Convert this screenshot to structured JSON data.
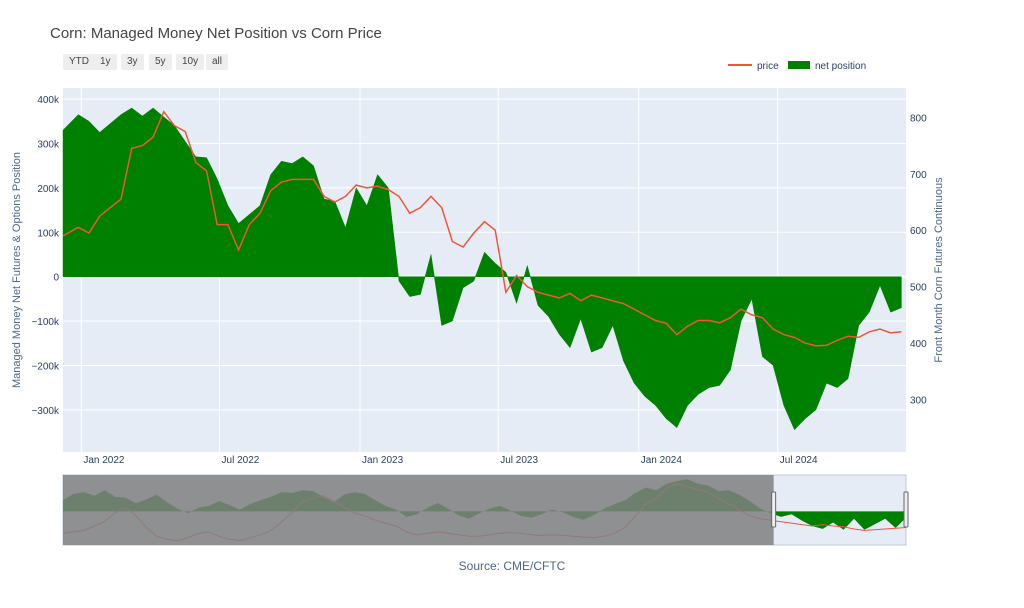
{
  "title": "Corn: Managed Money Net Position vs Corn Price",
  "source": "Source: CME/CFTC",
  "range_buttons": [
    "YTD",
    "1y",
    "3y",
    "5y",
    "10y",
    "all"
  ],
  "legend": {
    "price": "price",
    "net": "net position"
  },
  "colors": {
    "price": "#ef553b",
    "net": "#008000",
    "plot_bg": "#e5ecf6",
    "mask": "#808080"
  },
  "chart_data": {
    "type": "line",
    "title": "Corn: Managed Money Net Position vs Corn Price",
    "ylabel": "Managed Money Net Futures & Options Position",
    "y2label": "Front Month Corn Futures Continuous",
    "ylim": [
      -395000,
      425000
    ],
    "y2lim": [
      207,
      852
    ],
    "yticks": [
      -300000,
      -200000,
      -100000,
      0,
      100000,
      200000,
      300000,
      400000
    ],
    "ytick_labels": [
      "−300k",
      "−200k",
      "−100k",
      "0",
      "100k",
      "200k",
      "300k",
      "400k"
    ],
    "y2ticks": [
      300,
      400,
      500,
      600,
      700,
      800
    ],
    "y2tick_labels": [
      "300",
      "400",
      "500",
      "600",
      "700",
      "800"
    ],
    "xticks": [
      "2022-01-01",
      "2022-07-01",
      "2023-01-01",
      "2023-07-01",
      "2024-01-01",
      "2024-07-01"
    ],
    "xtick_labels": [
      "Jan 2022",
      "Jul 2022",
      "Jan 2023",
      "Jul 2023",
      "Jan 2024",
      "Jul 2024"
    ],
    "xlim": [
      "2021-12-08",
      "2024-12-16"
    ],
    "grid": true,
    "legend_position": "top-right",
    "series": [
      {
        "name": "net position",
        "axis": "left",
        "style": "area",
        "points": [
          [
            "2021-12-08",
            330000
          ],
          [
            "2021-12-28",
            365000
          ],
          [
            "2022-01-11",
            350000
          ],
          [
            "2022-01-25",
            325000
          ],
          [
            "2022-02-08",
            345000
          ],
          [
            "2022-02-22",
            365000
          ],
          [
            "2022-03-08",
            380000
          ],
          [
            "2022-03-22",
            362000
          ],
          [
            "2022-04-05",
            380000
          ],
          [
            "2022-04-19",
            360000
          ],
          [
            "2022-05-03",
            340000
          ],
          [
            "2022-05-17",
            305000
          ],
          [
            "2022-05-31",
            270000
          ],
          [
            "2022-06-14",
            268000
          ],
          [
            "2022-06-28",
            220000
          ],
          [
            "2022-07-12",
            160000
          ],
          [
            "2022-07-26",
            120000
          ],
          [
            "2022-08-09",
            140000
          ],
          [
            "2022-08-23",
            160000
          ],
          [
            "2022-09-06",
            230000
          ],
          [
            "2022-09-20",
            260000
          ],
          [
            "2022-10-04",
            255000
          ],
          [
            "2022-10-18",
            270000
          ],
          [
            "2022-11-01",
            250000
          ],
          [
            "2022-11-15",
            175000
          ],
          [
            "2022-11-29",
            170000
          ],
          [
            "2022-12-13",
            110000
          ],
          [
            "2022-12-27",
            200000
          ],
          [
            "2023-01-10",
            160000
          ],
          [
            "2023-01-24",
            230000
          ],
          [
            "2023-02-07",
            200000
          ],
          [
            "2023-02-21",
            -10000
          ],
          [
            "2023-03-07",
            -45000
          ],
          [
            "2023-03-21",
            -40000
          ],
          [
            "2023-04-04",
            50000
          ],
          [
            "2023-04-18",
            -110000
          ],
          [
            "2023-05-02",
            -100000
          ],
          [
            "2023-05-16",
            -25000
          ],
          [
            "2023-05-30",
            -10000
          ],
          [
            "2023-06-13",
            55000
          ],
          [
            "2023-06-27",
            30000
          ],
          [
            "2023-07-11",
            10000
          ],
          [
            "2023-07-25",
            -60000
          ],
          [
            "2023-08-08",
            25000
          ],
          [
            "2023-08-22",
            -65000
          ],
          [
            "2023-09-05",
            -90000
          ],
          [
            "2023-09-19",
            -130000
          ],
          [
            "2023-10-03",
            -160000
          ],
          [
            "2023-10-17",
            -95000
          ],
          [
            "2023-10-31",
            -170000
          ],
          [
            "2023-11-14",
            -160000
          ],
          [
            "2023-11-28",
            -110000
          ],
          [
            "2023-12-12",
            -190000
          ],
          [
            "2023-12-26",
            -240000
          ],
          [
            "2024-01-09",
            -270000
          ],
          [
            "2024-01-23",
            -290000
          ],
          [
            "2024-02-06",
            -320000
          ],
          [
            "2024-02-20",
            -340000
          ],
          [
            "2024-03-05",
            -290000
          ],
          [
            "2024-03-19",
            -265000
          ],
          [
            "2024-04-02",
            -250000
          ],
          [
            "2024-04-16",
            -245000
          ],
          [
            "2024-04-30",
            -210000
          ],
          [
            "2024-05-14",
            -100000
          ],
          [
            "2024-05-28",
            -50000
          ],
          [
            "2024-06-11",
            -180000
          ],
          [
            "2024-06-25",
            -200000
          ],
          [
            "2024-07-09",
            -290000
          ],
          [
            "2024-07-23",
            -345000
          ],
          [
            "2024-08-06",
            -320000
          ],
          [
            "2024-08-20",
            -300000
          ],
          [
            "2024-09-03",
            -240000
          ],
          [
            "2024-09-17",
            -250000
          ],
          [
            "2024-10-01",
            -230000
          ],
          [
            "2024-10-15",
            -110000
          ],
          [
            "2024-10-29",
            -80000
          ],
          [
            "2024-11-12",
            -20000
          ],
          [
            "2024-11-26",
            -80000
          ],
          [
            "2024-12-10",
            -70000
          ]
        ]
      },
      {
        "name": "price",
        "axis": "right",
        "style": "line",
        "points": [
          [
            "2021-12-08",
            590
          ],
          [
            "2021-12-28",
            605
          ],
          [
            "2022-01-11",
            595
          ],
          [
            "2022-01-25",
            625
          ],
          [
            "2022-02-08",
            640
          ],
          [
            "2022-02-22",
            655
          ],
          [
            "2022-03-08",
            745
          ],
          [
            "2022-03-22",
            750
          ],
          [
            "2022-04-05",
            765
          ],
          [
            "2022-04-19",
            810
          ],
          [
            "2022-05-03",
            785
          ],
          [
            "2022-05-17",
            775
          ],
          [
            "2022-05-31",
            720
          ],
          [
            "2022-06-14",
            705
          ],
          [
            "2022-06-28",
            610
          ],
          [
            "2022-07-12",
            610
          ],
          [
            "2022-07-26",
            565
          ],
          [
            "2022-08-09",
            610
          ],
          [
            "2022-08-23",
            630
          ],
          [
            "2022-09-06",
            670
          ],
          [
            "2022-09-20",
            685
          ],
          [
            "2022-10-04",
            690
          ],
          [
            "2022-10-18",
            690
          ],
          [
            "2022-11-01",
            690
          ],
          [
            "2022-11-15",
            660
          ],
          [
            "2022-11-29",
            650
          ],
          [
            "2022-12-13",
            660
          ],
          [
            "2022-12-27",
            680
          ],
          [
            "2023-01-10",
            675
          ],
          [
            "2023-01-24",
            678
          ],
          [
            "2023-02-07",
            672
          ],
          [
            "2023-02-21",
            660
          ],
          [
            "2023-03-07",
            630
          ],
          [
            "2023-03-21",
            640
          ],
          [
            "2023-04-04",
            660
          ],
          [
            "2023-04-18",
            640
          ],
          [
            "2023-05-02",
            580
          ],
          [
            "2023-05-16",
            570
          ],
          [
            "2023-05-30",
            595
          ],
          [
            "2023-06-13",
            615
          ],
          [
            "2023-06-27",
            600
          ],
          [
            "2023-07-11",
            490
          ],
          [
            "2023-07-25",
            520
          ],
          [
            "2023-08-08",
            500
          ],
          [
            "2023-08-22",
            490
          ],
          [
            "2023-09-05",
            485
          ],
          [
            "2023-09-19",
            480
          ],
          [
            "2023-10-03",
            488
          ],
          [
            "2023-10-17",
            475
          ],
          [
            "2023-10-31",
            485
          ],
          [
            "2023-11-14",
            480
          ],
          [
            "2023-11-28",
            475
          ],
          [
            "2023-12-12",
            470
          ],
          [
            "2023-12-26",
            460
          ],
          [
            "2024-01-09",
            450
          ],
          [
            "2024-01-23",
            440
          ],
          [
            "2024-02-06",
            435
          ],
          [
            "2024-02-20",
            415
          ],
          [
            "2024-03-05",
            430
          ],
          [
            "2024-03-19",
            440
          ],
          [
            "2024-04-02",
            440
          ],
          [
            "2024-04-16",
            436
          ],
          [
            "2024-04-30",
            445
          ],
          [
            "2024-05-14",
            460
          ],
          [
            "2024-05-28",
            450
          ],
          [
            "2024-06-11",
            445
          ],
          [
            "2024-06-25",
            425
          ],
          [
            "2024-07-09",
            415
          ],
          [
            "2024-07-23",
            410
          ],
          [
            "2024-08-06",
            400
          ],
          [
            "2024-08-20",
            395
          ],
          [
            "2024-09-03",
            396
          ],
          [
            "2024-09-17",
            405
          ],
          [
            "2024-10-01",
            412
          ],
          [
            "2024-10-15",
            410
          ],
          [
            "2024-10-29",
            420
          ],
          [
            "2024-11-12",
            425
          ],
          [
            "2024-11-26",
            418
          ],
          [
            "2024-12-10",
            420
          ]
        ]
      }
    ]
  },
  "range_slider": {
    "selection_start": "2021-12-08",
    "selection_end": "2024-12-16",
    "net": [
      120000,
      190000,
      210000,
      170000,
      230000,
      160000,
      150000,
      90000,
      130000,
      180000,
      100000,
      30000,
      -20000,
      40000,
      60000,
      110000,
      70000,
      20000,
      80000,
      120000,
      160000,
      210000,
      200000,
      230000,
      220000,
      160000,
      100000,
      180000,
      210000,
      190000,
      120000,
      60000,
      20000,
      -60000,
      -30000,
      40000,
      90000,
      30000,
      -40000,
      -80000,
      -20000,
      30000,
      60000,
      10000,
      -50000,
      -70000,
      -30000,
      20000,
      -10000,
      -60000,
      -90000,
      -40000,
      30000,
      80000,
      120000,
      200000,
      260000,
      230000,
      300000,
      330000,
      350000,
      300000,
      280000,
      220000,
      230000,
      180000,
      110000,
      30000,
      -20000,
      -60000,
      -30000,
      -100000,
      -160000,
      -190000,
      -120000,
      -200000,
      -80000,
      -200000,
      -140000,
      -80000,
      -180000,
      -70000
    ],
    "price": [
      380,
      390,
      400,
      430,
      460,
      520,
      560,
      500,
      420,
      360,
      340,
      330,
      350,
      380,
      390,
      360,
      340,
      330,
      350,
      370,
      400,
      460,
      520,
      600,
      620,
      640,
      600,
      560,
      520,
      500,
      470,
      450,
      430,
      390,
      370,
      380,
      390,
      380,
      370,
      360,
      360,
      370,
      380,
      385,
      380,
      370,
      365,
      370,
      365,
      360,
      355,
      350,
      360,
      380,
      420,
      500,
      580,
      620,
      690,
      720,
      700,
      680,
      660,
      620,
      580,
      540,
      500,
      480,
      470,
      460,
      450,
      440,
      430,
      440,
      430,
      425,
      410,
      400,
      405,
      410,
      415,
      420
    ]
  }
}
